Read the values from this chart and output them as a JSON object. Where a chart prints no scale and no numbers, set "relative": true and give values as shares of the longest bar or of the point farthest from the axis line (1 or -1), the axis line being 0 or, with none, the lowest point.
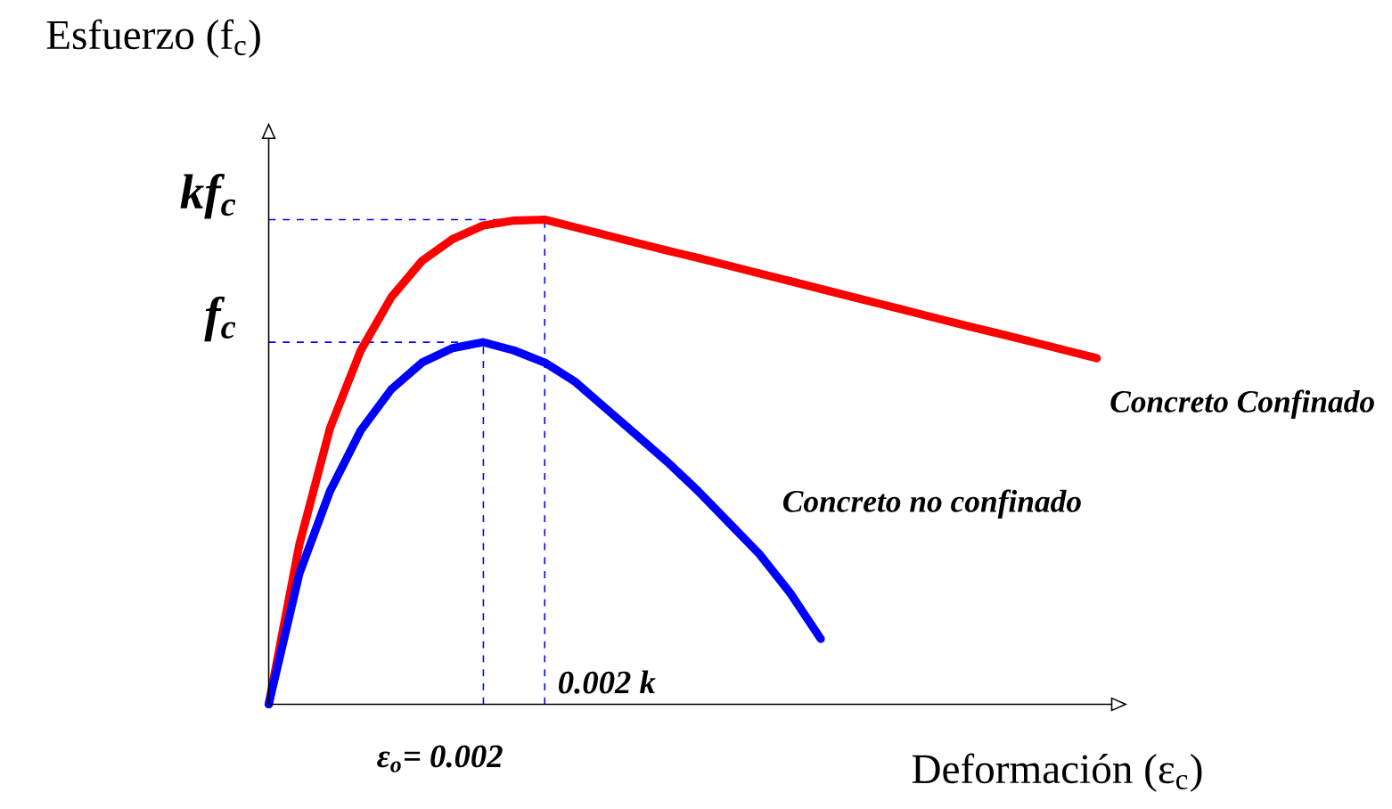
{
  "chart_data": {
    "type": "line",
    "relative": true,
    "ylabel": "Esfuerzo (f$_{c}$)",
    "xlabel": "Deformación (ε$_{c}$)",
    "categories": [
      null,
      null,
      null,
      null,
      null,
      null,
      null,
      null,
      null,
      null,
      null,
      null,
      null,
      null,
      null,
      null,
      null,
      null,
      null,
      null,
      null,
      null,
      null,
      null,
      null,
      null,
      null,
      null
    ],
    "marker": "none",
    "line_style": "solid",
    "series": [
      {
        "name": "Concreto Confinado",
        "color": "#ff0000",
        "values": [
          0,
          0.33,
          0.57,
          0.73,
          0.84,
          0.915,
          0.96,
          0.988,
          0.998,
          1,
          0.984,
          0.968,
          0.952,
          0.936,
          0.921,
          0.905,
          0.889,
          0.873,
          0.857,
          0.841,
          0.825,
          0.809,
          0.793,
          0.777,
          0.762,
          0.746,
          0.73,
          0.714
        ]
      },
      {
        "name": "Concreto no confinado",
        "color": "#0000ff",
        "values": [
          0,
          0.27,
          0.44,
          0.565,
          0.65,
          0.705,
          0.735,
          0.747,
          0.73,
          0.705,
          0.665,
          0.61,
          0.555,
          0.5,
          0.44,
          0.375,
          0.31,
          0.23,
          0.135,
          null,
          null,
          null,
          null,
          null,
          null,
          null,
          null,
          null
        ]
      }
    ],
    "ref_lines": [
      {
        "axis": "y",
        "value": 1,
        "label": "kf$_{c}$",
        "color": "#0000ff",
        "line_style": "dashed"
      },
      {
        "axis": "y",
        "value": 0.747,
        "label": "f$_{c}$",
        "color": "#0000ff",
        "line_style": "dashed"
      }
    ],
    "annotations": [
      "0.002 k",
      "ε$_{o}$= 0.002"
    ]
  }
}
